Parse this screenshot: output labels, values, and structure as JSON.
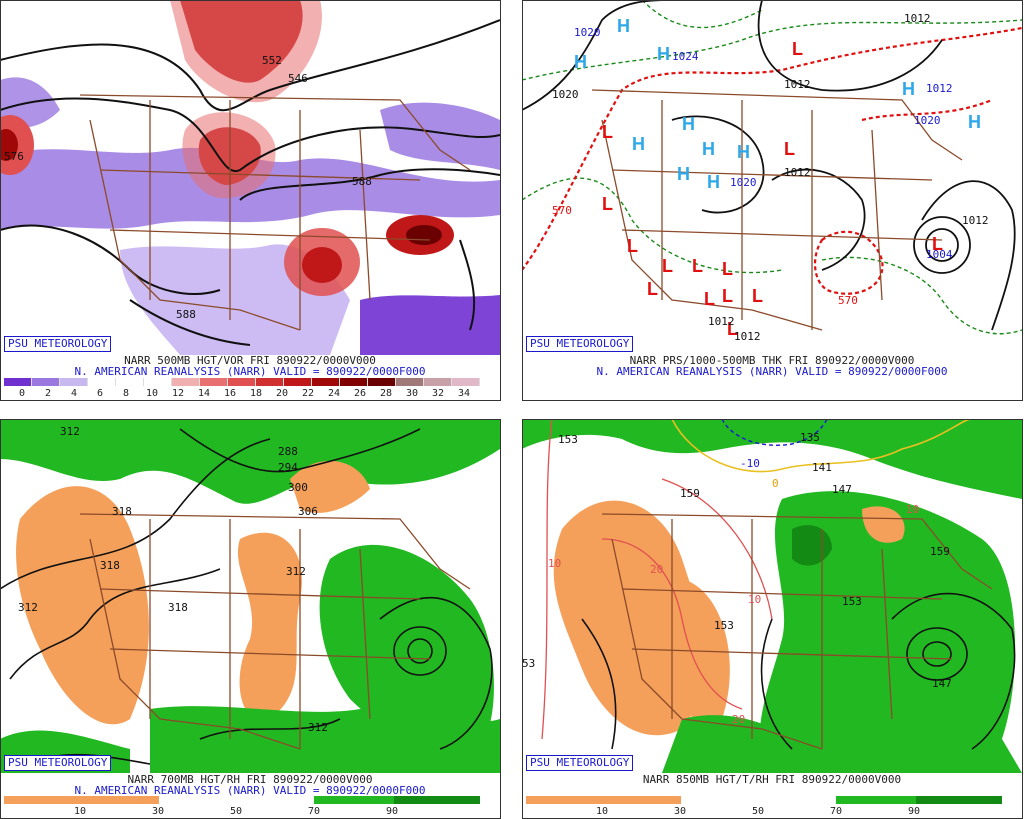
{
  "panels": {
    "p1": {
      "logo": "PSU METEOROLOGY",
      "title_line1": "NARR 500MB HGT/VOR FRI 890922/0000V000",
      "title_line2": "N. AMERICAN REANALYSIS (NARR) VALID = 890922/0000F000",
      "colorbar_ticks": [
        "0",
        "2",
        "4",
        "6",
        "8",
        "10",
        "12",
        "14",
        "16",
        "18",
        "20",
        "22",
        "24",
        "26",
        "28",
        "30",
        "32",
        "34"
      ],
      "colorbar_colors": [
        "#7030d0",
        "#9a78e0",
        "#c8b8f0",
        "#ffffff",
        "#ffffff",
        "#ffffff",
        "#f0b0b0",
        "#e87070",
        "#e05050",
        "#d03030",
        "#c01818",
        "#a00808",
        "#800000",
        "#6a0000",
        "#a07878",
        "#c8a0a8",
        "#e0b8c8"
      ],
      "labels": [
        "552",
        "546",
        "576",
        "588",
        "588",
        "588"
      ]
    },
    "p2": {
      "logo": "PSU METEOROLOGY",
      "title_line1": "NARR PRS/1000-500MB THK FRI 890922/0000V000",
      "title_line2": "N. AMERICAN REANALYSIS (NARR) VALID = 890922/0000F000",
      "labels": [
        "1020",
        "1020",
        "1024",
        "1012",
        "1012",
        "1012",
        "1020",
        "1020",
        "1012",
        "1012",
        "1004",
        "570",
        "570",
        "1012",
        "1012"
      ],
      "highs": [
        "H",
        "H",
        "H",
        "H",
        "H",
        "H",
        "H",
        "H",
        "H",
        "H",
        "H"
      ],
      "lows": [
        "L",
        "L",
        "L",
        "L",
        "L",
        "L",
        "L",
        "L",
        "L",
        "L",
        "L",
        "L",
        "L",
        "L"
      ]
    },
    "p3": {
      "logo": "PSU METEOROLOGY",
      "title_line1": "NARR 700MB HGT/RH FRI 890922/0000V000",
      "title_line2": "N. AMERICAN REANALYSIS (NARR) VALID = 890922/0000F000",
      "colorbar_ticks": [
        "10",
        "30",
        "50",
        "70",
        "90"
      ],
      "labels": [
        "312",
        "288",
        "294",
        "300",
        "306",
        "318",
        "318",
        "312",
        "312",
        "318",
        "312"
      ]
    },
    "p4": {
      "logo": "PSU METEOROLOGY",
      "title_line1": "NARR 850MB HGT/T/RH FRI 890922/0000V000",
      "colorbar_ticks": [
        "10",
        "30",
        "50",
        "70",
        "90"
      ],
      "labels": [
        "153",
        "135",
        "-10",
        "141",
        "147",
        "159",
        "153",
        "153",
        "53",
        "159",
        "147"
      ],
      "temp_labels": [
        "0",
        "10",
        "10",
        "20",
        "20",
        "10"
      ]
    }
  },
  "colors": {
    "dry": "#f4a05a",
    "moist": "#22b822",
    "moist_dark": "#138a13",
    "border": "#8b4a2a",
    "high": "#2ea8e8",
    "low": "#e01010",
    "thk_red": "#e01010",
    "thk_green": "#1a8a1a",
    "blue_text": "#1a1acc"
  }
}
